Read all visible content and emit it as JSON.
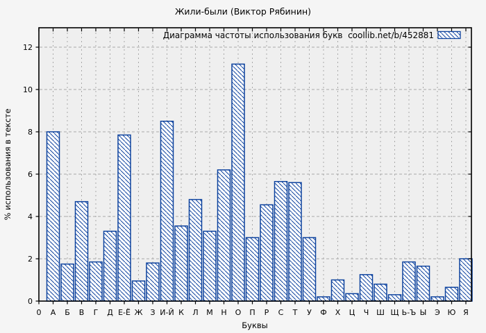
{
  "chart_data": {
    "type": "bar",
    "title": "Жили-были (Виктор Рябинин)",
    "legend_label": "Диаграмма частоты использования букв  coollib.net/b/452881",
    "legend_position": "top-right",
    "xlabel": "Буквы",
    "ylabel": "% использования в тексте",
    "origin_label": "0",
    "categories": [
      "А",
      "Б",
      "В",
      "Г",
      "Д",
      "Е-Ё",
      "Ж",
      "З",
      "И-Й",
      "К",
      "Л",
      "М",
      "Н",
      "О",
      "П",
      "Р",
      "С",
      "Т",
      "У",
      "Ф",
      "Х",
      "Ц",
      "Ч",
      "Ш",
      "Щ",
      "Ь-Ъ",
      "Ы",
      "Э",
      "Ю",
      "Я"
    ],
    "values": [
      8.0,
      1.75,
      4.7,
      1.85,
      3.3,
      7.85,
      0.95,
      1.8,
      8.5,
      3.55,
      4.8,
      3.3,
      6.2,
      11.2,
      3.0,
      4.55,
      5.65,
      5.6,
      3.0,
      0.2,
      1.0,
      0.35,
      1.25,
      0.8,
      0.3,
      1.85,
      1.65,
      0.2,
      0.65,
      2.0
    ],
    "y_ticks": [
      0,
      2,
      4,
      6,
      8,
      10,
      12
    ],
    "ylim": [
      0,
      12.9
    ],
    "grid": true,
    "hatch": "diagonal-backslash",
    "colors": {
      "bar_stroke": "#0d429e",
      "bar_fill": "#ffffff",
      "grid": "#a8a8a8",
      "frame": "#000000",
      "plot_bg": "#efefef",
      "canvas_bg": "#f5f5f5",
      "text": "#000000"
    }
  }
}
